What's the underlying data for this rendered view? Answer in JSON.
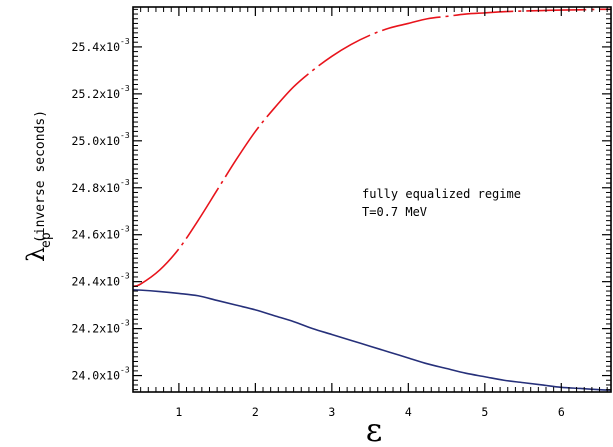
{
  "chart_data": {
    "type": "line",
    "xlim": [
      0.4,
      6.65
    ],
    "ylim": [
      23.93,
      25.57
    ],
    "x_ticks": [
      1,
      2,
      3,
      4,
      5,
      6
    ],
    "y_ticks": [
      {
        "value": 24.0,
        "mantissa": "24.0x10",
        "exponent": "-3"
      },
      {
        "value": 24.2,
        "mantissa": "24.2x10",
        "exponent": "-3"
      },
      {
        "value": 24.4,
        "mantissa": "24.4x10",
        "exponent": "-3"
      },
      {
        "value": 24.6,
        "mantissa": "24.6x10",
        "exponent": "-3"
      },
      {
        "value": 24.8,
        "mantissa": "24.8x10",
        "exponent": "-3"
      },
      {
        "value": 25.0,
        "mantissa": "25.0x10",
        "exponent": "-3"
      },
      {
        "value": 25.2,
        "mantissa": "25.2x10",
        "exponent": "-3"
      },
      {
        "value": 25.4,
        "mantissa": "25.4x10",
        "exponent": "-3"
      }
    ],
    "xlabel": "ε",
    "ylabel_main": "λ",
    "ylabel_sub": "ep",
    "ylabel_units": "(inverse seconds)",
    "annotations": [
      "fully equalized regime",
      "T=0.7 MeV"
    ],
    "grid": false,
    "series": [
      {
        "color": "#e8141c",
        "style": "dash-dot",
        "x": [
          0.4,
          0.5,
          0.75,
          1.0,
          1.25,
          1.5,
          1.75,
          2.0,
          2.25,
          2.5,
          2.75,
          3.0,
          3.25,
          3.5,
          3.75,
          4.0,
          4.25,
          4.5,
          4.75,
          5.0,
          5.25,
          5.5,
          5.75,
          6.0,
          6.25,
          6.5,
          6.65
        ],
        "y": [
          24.38,
          24.39,
          24.45,
          24.54,
          24.66,
          24.79,
          24.92,
          25.04,
          25.14,
          25.23,
          25.3,
          25.36,
          25.41,
          25.45,
          25.48,
          25.5,
          25.52,
          25.53,
          25.54,
          25.545,
          25.55,
          25.553,
          25.555,
          25.557,
          25.558,
          25.56,
          25.56
        ]
      },
      {
        "color": "#26307a",
        "style": "solid",
        "x": [
          0.4,
          0.5,
          0.75,
          1.0,
          1.25,
          1.5,
          1.75,
          2.0,
          2.25,
          2.5,
          2.75,
          3.0,
          3.25,
          3.5,
          3.75,
          4.0,
          4.25,
          4.5,
          4.75,
          5.0,
          5.25,
          5.5,
          5.75,
          6.0,
          6.25,
          6.5,
          6.65
        ],
        "y": [
          24.365,
          24.364,
          24.358,
          24.35,
          24.34,
          24.32,
          24.3,
          24.28,
          24.255,
          24.23,
          24.2,
          24.175,
          24.15,
          24.125,
          24.1,
          24.075,
          24.05,
          24.03,
          24.01,
          23.995,
          23.98,
          23.97,
          23.96,
          23.95,
          23.945,
          23.94,
          23.938
        ]
      }
    ]
  }
}
